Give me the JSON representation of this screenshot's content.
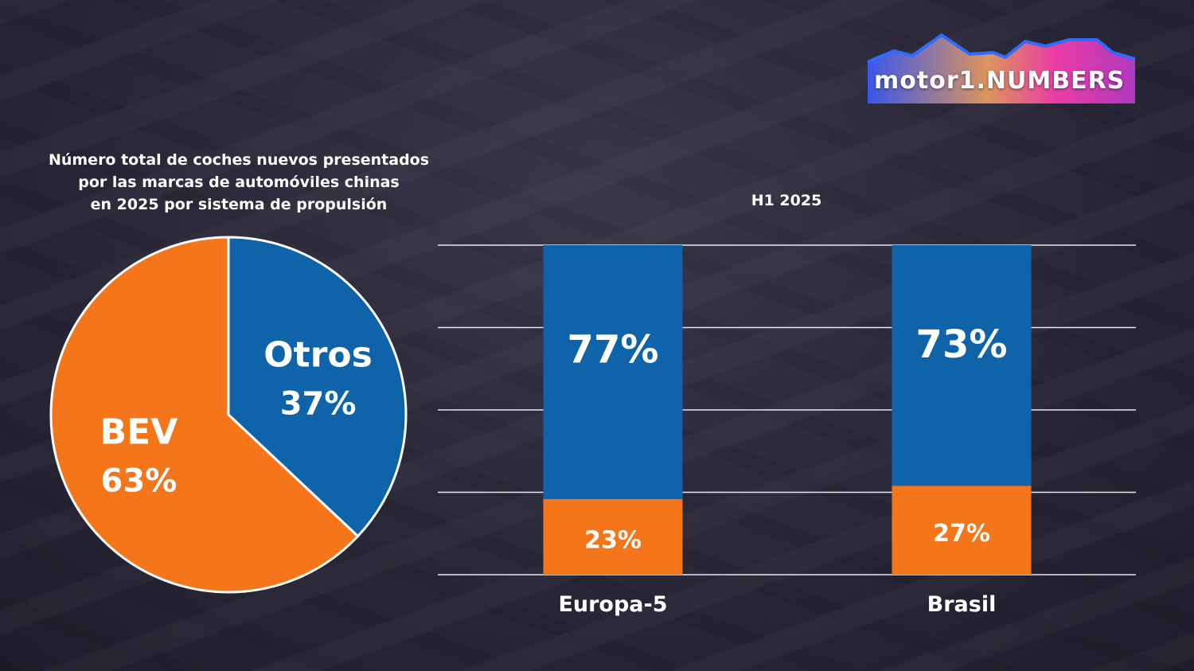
{
  "logo": {
    "text": "motor1.NUMBERS",
    "brand": "motor",
    "number": "1",
    "suffix": "NUMBERS"
  },
  "chart_data": [
    {
      "type": "pie",
      "title": "Número total de coches nuevos presentados por las marcas de automóviles chinas en 2025 por sistema de propulsión",
      "title_lines": [
        "Número total de coches nuevos presentados",
        "por las marcas de automóviles chinas",
        "en 2025 por sistema de propulsión"
      ],
      "slices": [
        {
          "label": "Otros",
          "value": 37,
          "display": "37%",
          "color": "#0e63a9"
        },
        {
          "label": "BEV",
          "value": 63,
          "display": "63%",
          "color": "#f5751b"
        }
      ]
    },
    {
      "type": "bar",
      "stacked": true,
      "title": "H1 2025",
      "categories": [
        "Europa-5",
        "Brasil"
      ],
      "ylim": [
        0,
        100
      ],
      "grid": true,
      "series": [
        {
          "values": [
            23,
            27
          ],
          "labels": [
            "23%",
            "27%"
          ],
          "color": "#f5751b"
        },
        {
          "values": [
            77,
            73
          ],
          "labels": [
            "77%",
            "73%"
          ],
          "color": "#0e63a9"
        }
      ]
    }
  ]
}
